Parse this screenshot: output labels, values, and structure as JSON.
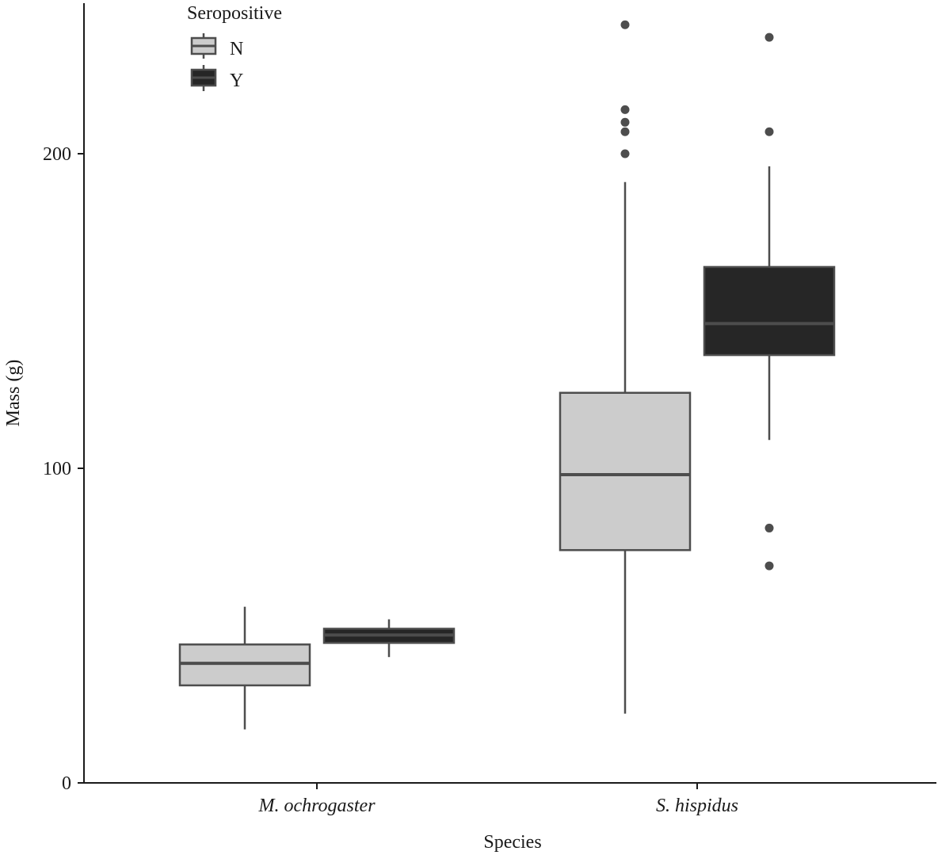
{
  "chart_data": {
    "type": "boxplot",
    "xlabel": "Species",
    "ylabel": "Mass (g)",
    "ylim": [
      0,
      247
    ],
    "yticks": [
      0,
      100,
      200
    ],
    "categories": [
      "M. ochrogaster",
      "S. hispidus"
    ],
    "legend": {
      "title": "Seropositive",
      "position": "top-left",
      "entries": [
        {
          "label": "N",
          "fill": "#cccccc"
        },
        {
          "label": "Y",
          "fill": "#262626"
        }
      ]
    },
    "series": [
      {
        "name": "N",
        "fill": "#cccccc",
        "boxes": [
          {
            "category": "M. ochrogaster",
            "whisker_low": 17,
            "q1": 31,
            "median": 38,
            "q3": 44,
            "whisker_high": 56,
            "outliers": []
          },
          {
            "category": "S. hispidus",
            "whisker_low": 22,
            "q1": 74,
            "median": 98,
            "q3": 124,
            "whisker_high": 191,
            "outliers": [
              200,
              207,
              210,
              214,
              241
            ]
          }
        ]
      },
      {
        "name": "Y",
        "fill": "#262626",
        "boxes": [
          {
            "category": "M. ochrogaster",
            "whisker_low": 40,
            "q1": 44.5,
            "median": 47,
            "q3": 49,
            "whisker_high": 52,
            "outliers": []
          },
          {
            "category": "S. hispidus",
            "whisker_low": 109,
            "q1": 136,
            "median": 146,
            "q3": 164,
            "whisker_high": 196,
            "outliers": [
              69,
              81,
              207,
              237
            ]
          }
        ]
      }
    ]
  }
}
